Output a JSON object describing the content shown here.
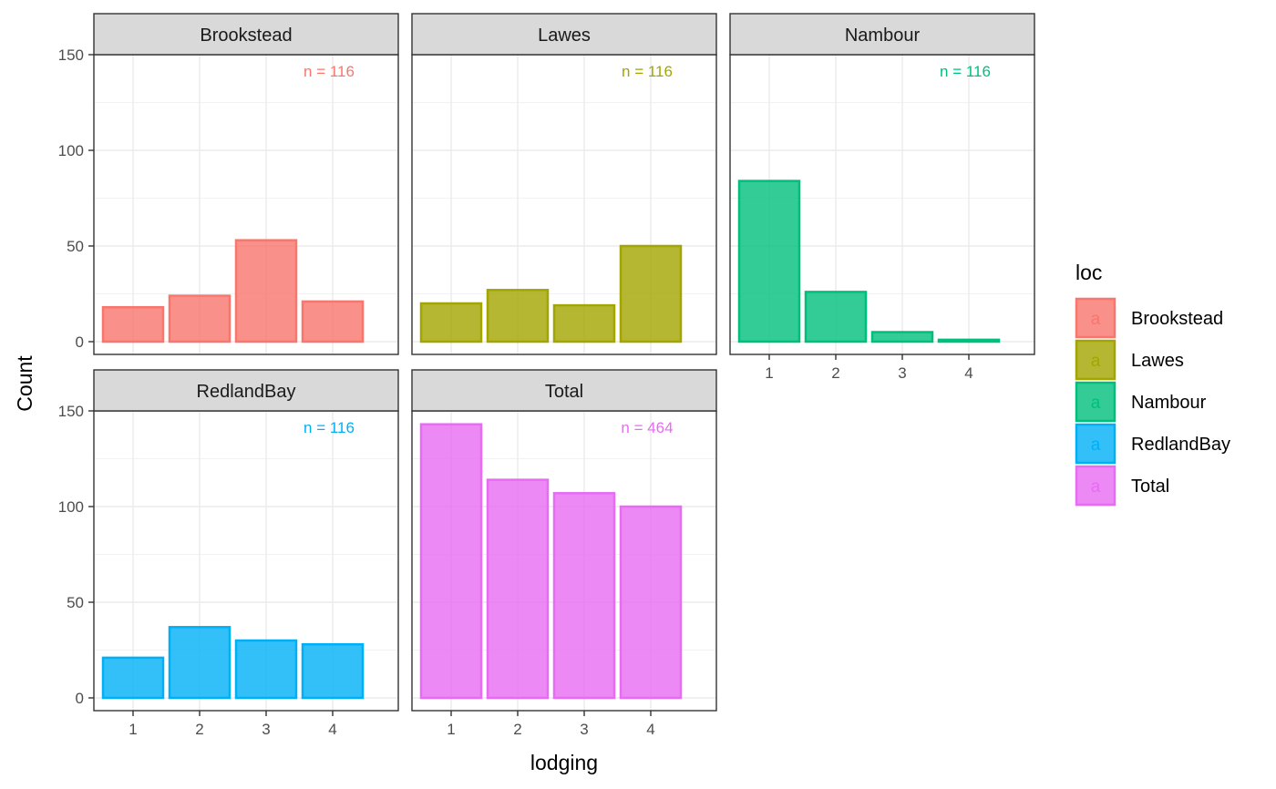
{
  "chart_data": {
    "type": "bar",
    "xlabel": "lodging",
    "ylabel": "Count",
    "ylim": [
      0,
      150
    ],
    "y_ticks": [
      0,
      50,
      100,
      150
    ],
    "categories": [
      "1",
      "2",
      "3",
      "4"
    ],
    "grid": true,
    "legend": {
      "title": "loc",
      "placement": "right",
      "key_glyph": "a"
    },
    "panels": [
      {
        "name": "Brookstead",
        "color": "#F8766D",
        "values": [
          18,
          24,
          53,
          21
        ],
        "n_label": "n = 116"
      },
      {
        "name": "Lawes",
        "color": "#A3A500",
        "values": [
          20,
          27,
          19,
          50
        ],
        "n_label": "n = 116"
      },
      {
        "name": "Nambour",
        "color": "#00BF7D",
        "values": [
          84,
          26,
          5,
          1
        ],
        "n_label": "n = 116"
      },
      {
        "name": "RedlandBay",
        "color": "#00B0F6",
        "values": [
          21,
          37,
          30,
          28
        ],
        "n_label": "n = 116"
      },
      {
        "name": "Total",
        "color": "#E76BF3",
        "values": [
          143,
          114,
          107,
          100
        ],
        "n_label": "n = 464"
      }
    ]
  }
}
